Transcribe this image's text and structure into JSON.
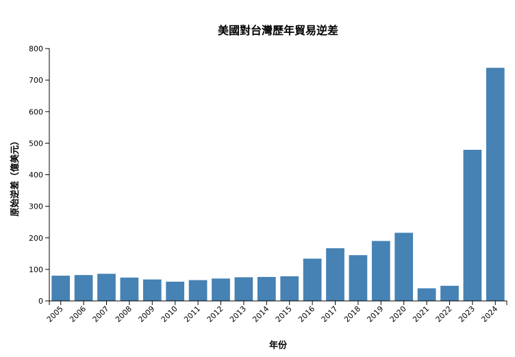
{
  "chart_data": {
    "type": "bar",
    "title": "美國對台灣歷年貿易逆差",
    "xlabel": "年份",
    "ylabel": "原始逆差（億美元）",
    "categories": [
      "2005",
      "2006",
      "2007",
      "2008",
      "2009",
      "2010",
      "2011",
      "2012",
      "2013",
      "2014",
      "2015",
      "2016",
      "2017",
      "2018",
      "2019",
      "2020",
      "2021",
      "2022",
      "2023",
      "2024"
    ],
    "values": [
      80,
      82,
      86,
      74,
      68,
      61,
      66,
      71,
      75,
      76,
      78,
      134,
      167,
      145,
      190,
      216,
      40,
      48,
      479,
      739
    ],
    "ylim": [
      0,
      800
    ],
    "yticks": [
      0,
      100,
      200,
      300,
      400,
      500,
      600,
      700,
      800
    ],
    "bar_color": "#4682b4",
    "grid": false,
    "legend": "none"
  }
}
